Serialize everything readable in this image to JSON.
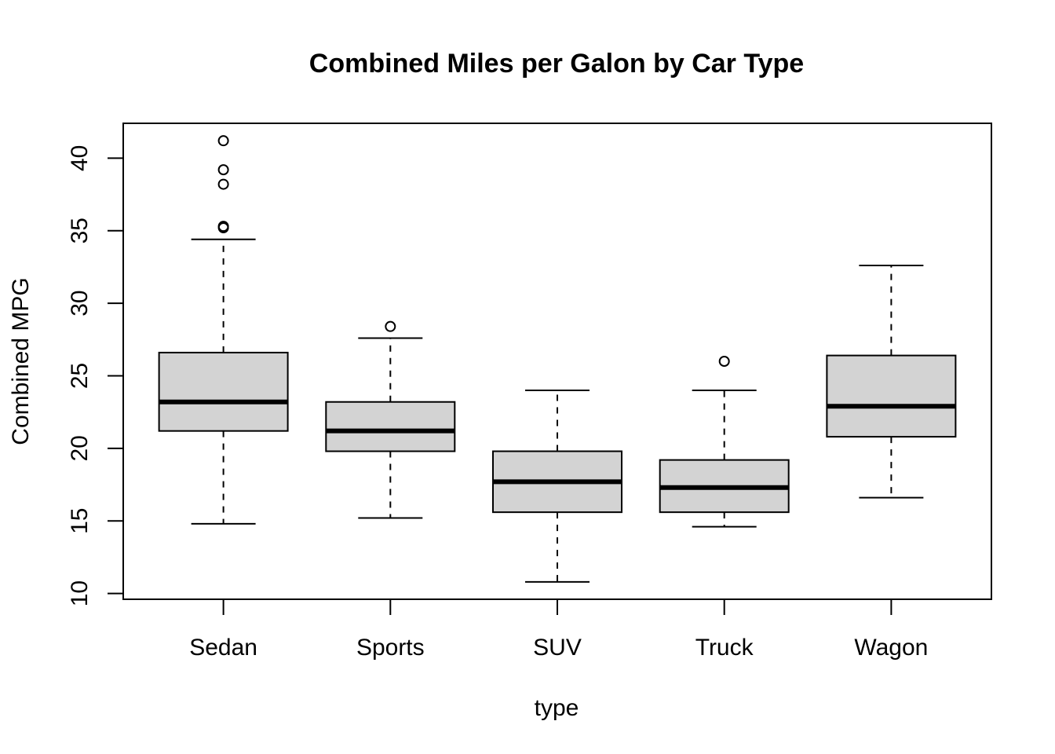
{
  "chart_data": {
    "type": "boxplot",
    "title": "Combined Miles per Galon by Car Type",
    "xlabel": "type",
    "ylabel": "Combined MPG",
    "ylim": [
      9.6,
      42.4
    ],
    "yticks": [
      "10",
      "15",
      "20",
      "25",
      "30",
      "35",
      "40"
    ],
    "grid": false,
    "legend": "none",
    "colors": {
      "box_fill": "#d3d3d3",
      "stroke": "#000000"
    },
    "categories": [
      "Sedan",
      "Sports",
      "SUV",
      "Truck",
      "Wagon"
    ],
    "boxes": [
      {
        "category": "Sedan",
        "whisker_low": 14.8,
        "q1": 21.2,
        "median": 23.2,
        "q3": 26.6,
        "whisker_high": 34.4,
        "outliers": [
          35.2,
          35.3,
          38.2,
          39.2,
          41.2
        ]
      },
      {
        "category": "Sports",
        "whisker_low": 15.2,
        "q1": 19.8,
        "median": 21.2,
        "q3": 23.2,
        "whisker_high": 27.6,
        "outliers": [
          28.4
        ]
      },
      {
        "category": "SUV",
        "whisker_low": 10.8,
        "q1": 15.6,
        "median": 17.7,
        "q3": 19.8,
        "whisker_high": 24.0,
        "outliers": []
      },
      {
        "category": "Truck",
        "whisker_low": 14.6,
        "q1": 15.6,
        "median": 17.3,
        "q3": 19.2,
        "whisker_high": 24.0,
        "outliers": [
          26.0
        ]
      },
      {
        "category": "Wagon",
        "whisker_low": 16.6,
        "q1": 20.8,
        "median": 22.9,
        "q3": 26.4,
        "whisker_high": 32.6,
        "outliers": []
      }
    ]
  }
}
